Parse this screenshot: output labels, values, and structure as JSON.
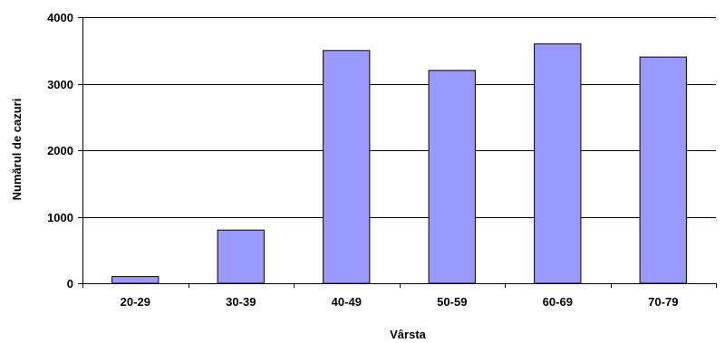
{
  "chart_data": {
    "type": "bar",
    "categories": [
      "20-29",
      "30-39",
      "40-49",
      "50-59",
      "60-69",
      "70-79"
    ],
    "values": [
      100,
      800,
      3500,
      3200,
      3600,
      3400
    ],
    "title": "",
    "xlabel": "Vârsta",
    "ylabel": "Numărul de cazuri",
    "ylim": [
      0,
      4000
    ],
    "yticks": [
      0,
      1000,
      2000,
      3000,
      4000
    ],
    "grid": true,
    "legend": "none",
    "bar_color": "#9999ff",
    "bar_edge_color": "#000000",
    "grid_color": "#000000"
  }
}
